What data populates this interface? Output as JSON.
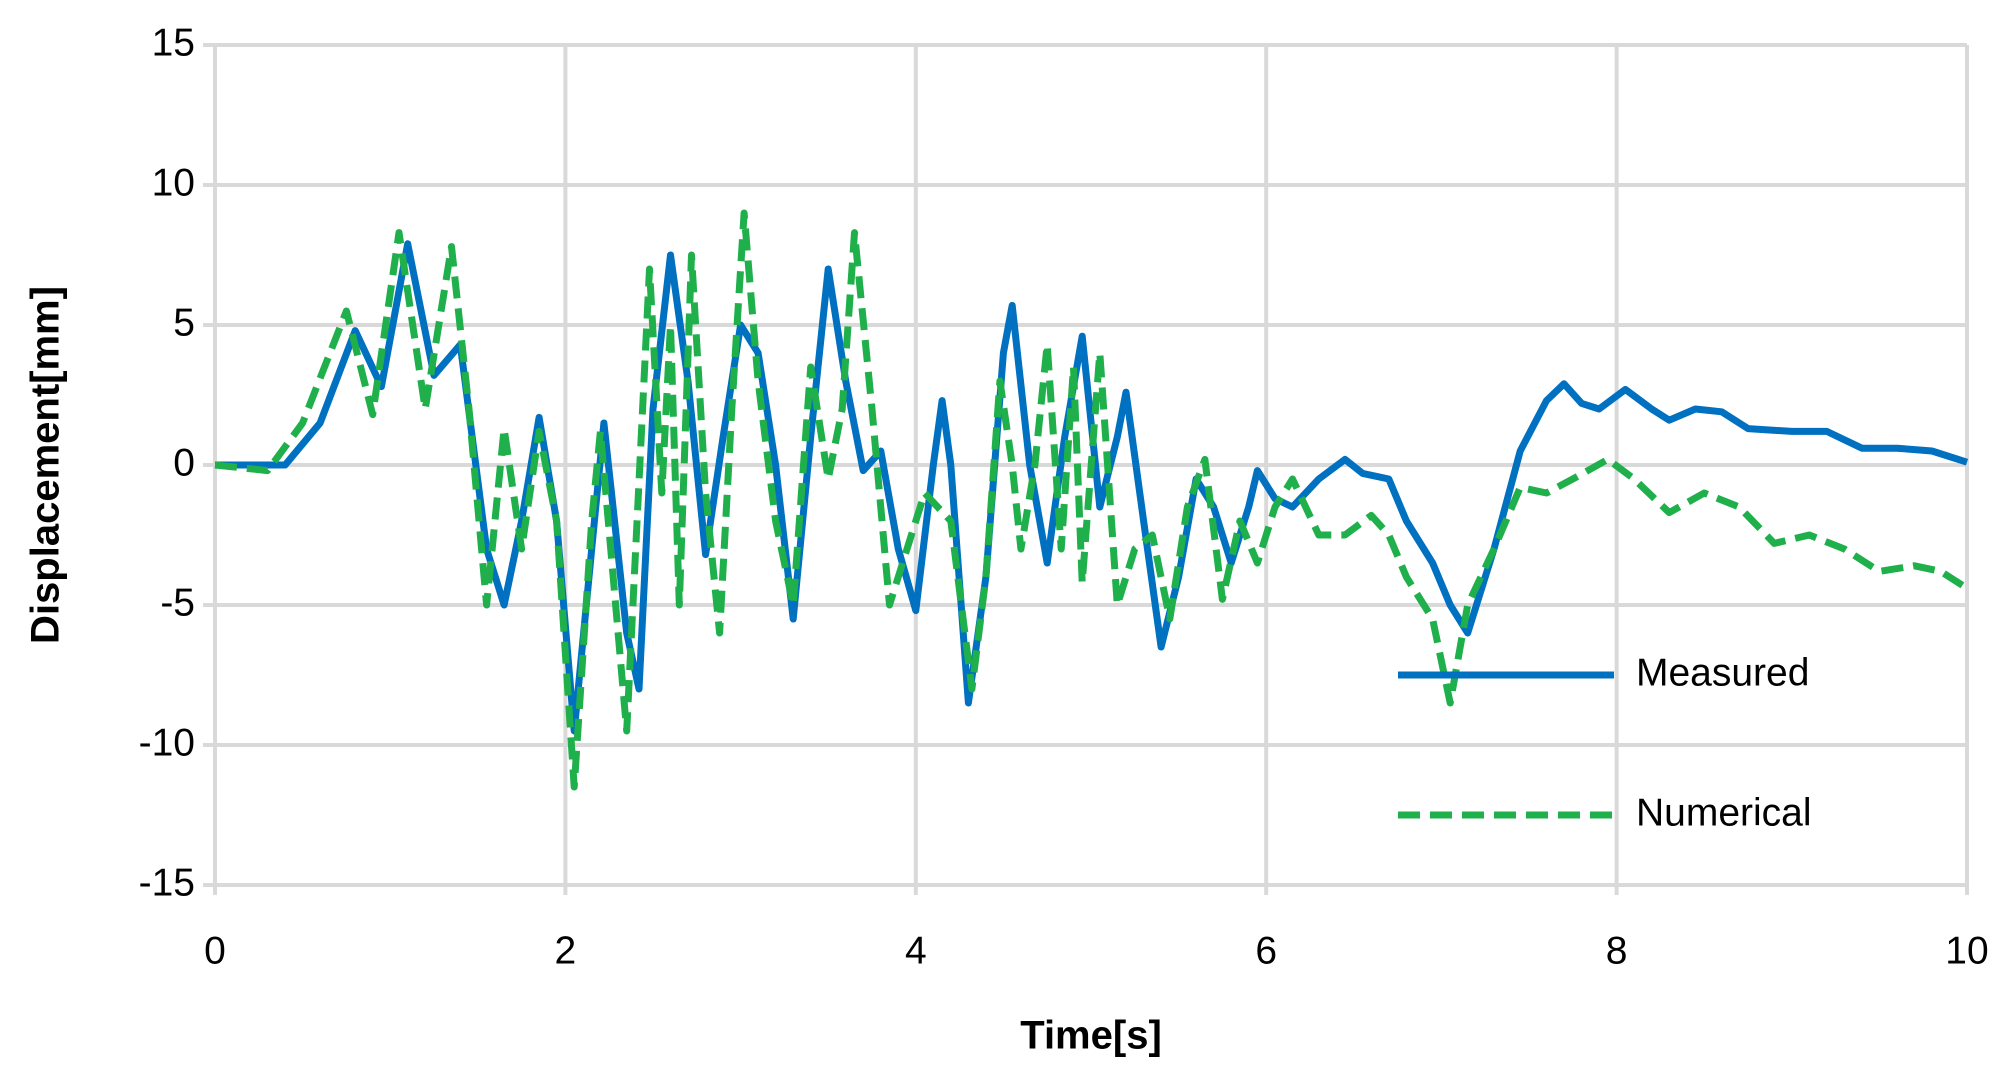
{
  "chart_data": {
    "type": "line",
    "xlabel": "Time[s]",
    "ylabel": "Displacement[mm]",
    "xlim": [
      0,
      10
    ],
    "xticks": [
      0,
      2,
      4,
      6,
      8,
      10
    ],
    "ylim": [
      -15,
      15
    ],
    "yticks": [
      -15,
      -10,
      -5,
      0,
      5,
      10,
      15
    ],
    "grid": true,
    "series": [
      {
        "name": "Measured",
        "color": "#0070c0",
        "dash": false,
        "x": [
          0,
          0.4,
          0.6,
          0.8,
          0.95,
          1.1,
          1.25,
          1.4,
          1.55,
          1.65,
          1.75,
          1.85,
          1.95,
          2.05,
          2.15,
          2.22,
          2.35,
          2.42,
          2.5,
          2.6,
          2.7,
          2.8,
          2.9,
          3.0,
          3.1,
          3.2,
          3.3,
          3.4,
          3.5,
          3.6,
          3.7,
          3.8,
          3.9,
          4.0,
          4.1,
          4.15,
          4.2,
          4.3,
          4.4,
          4.5,
          4.55,
          4.65,
          4.75,
          4.85,
          4.95,
          5.05,
          5.15,
          5.2,
          5.3,
          5.4,
          5.5,
          5.6,
          5.7,
          5.8,
          5.9,
          5.95,
          6.05,
          6.15,
          6.3,
          6.45,
          6.55,
          6.7,
          6.8,
          6.95,
          7.05,
          7.15,
          7.3,
          7.45,
          7.6,
          7.7,
          7.8,
          7.9,
          8.05,
          8.2,
          8.3,
          8.45,
          8.6,
          8.75,
          9.0,
          9.2,
          9.4,
          9.6,
          9.8,
          10
        ],
        "values": [
          0,
          0,
          1.5,
          4.8,
          2.8,
          7.9,
          3.2,
          4.3,
          -3,
          -5,
          -2,
          1.7,
          -2,
          -9.5,
          -3,
          1.5,
          -6,
          -8,
          2,
          7.5,
          3,
          -3.2,
          1,
          5,
          4,
          0,
          -5.5,
          1,
          7,
          3,
          -0.2,
          0.5,
          -3,
          -5.2,
          0,
          2.3,
          0,
          -8.5,
          -4,
          4,
          5.7,
          0,
          -3.5,
          1,
          4.6,
          -1.5,
          1,
          2.6,
          -2,
          -6.5,
          -4,
          -0.5,
          -1.5,
          -3.5,
          -1.5,
          -0.2,
          -1.2,
          -1.5,
          -0.5,
          0.2,
          -0.3,
          -0.5,
          -2,
          -3.5,
          -5,
          -6,
          -3,
          0.5,
          2.3,
          2.9,
          2.2,
          2,
          2.7,
          2,
          1.6,
          2,
          1.9,
          1.3,
          1.2,
          1.2,
          0.6,
          0.6,
          0.5,
          0.1
        ]
      },
      {
        "name": "Numerical",
        "color": "#1fb04b",
        "dash": true,
        "x": [
          0,
          0.3,
          0.5,
          0.75,
          0.9,
          1.05,
          1.2,
          1.35,
          1.45,
          1.55,
          1.65,
          1.75,
          1.85,
          1.95,
          2.05,
          2.15,
          2.2,
          2.35,
          2.48,
          2.55,
          2.6,
          2.65,
          2.72,
          2.8,
          2.88,
          2.95,
          3.02,
          3.1,
          3.2,
          3.3,
          3.4,
          3.5,
          3.58,
          3.65,
          3.75,
          3.85,
          3.95,
          4.05,
          4.2,
          4.32,
          4.4,
          4.48,
          4.55,
          4.6,
          4.68,
          4.75,
          4.83,
          4.9,
          4.95,
          5.05,
          5.15,
          5.25,
          5.35,
          5.45,
          5.55,
          5.65,
          5.75,
          5.85,
          5.95,
          6.05,
          6.15,
          6.3,
          6.45,
          6.6,
          6.7,
          6.8,
          6.95,
          7.05,
          7.15,
          7.3,
          7.45,
          7.6,
          7.75,
          7.95,
          8.1,
          8.3,
          8.5,
          8.7,
          8.9,
          9.1,
          9.3,
          9.5,
          9.7,
          9.85,
          10
        ],
        "values": [
          0,
          -0.2,
          1.5,
          5.5,
          1.8,
          8.3,
          2,
          7.8,
          2,
          -5,
          1.3,
          -3,
          1.2,
          -2,
          -11.5,
          -2,
          1.2,
          -9.5,
          7,
          -1,
          5,
          -5,
          7.5,
          -1,
          -6,
          2,
          9,
          3,
          -2,
          -5,
          3.5,
          -0.5,
          2,
          8.3,
          2,
          -5,
          -3,
          -1,
          -2,
          -8,
          -4,
          3,
          0,
          -3,
          0,
          4.3,
          -3,
          3.5,
          -4.2,
          4,
          -5,
          -3,
          -2.5,
          -5.5,
          -1.5,
          0.2,
          -4.8,
          -2,
          -3.5,
          -1.5,
          -0.5,
          -2.5,
          -2.5,
          -1.8,
          -2.5,
          -4,
          -5.5,
          -8.5,
          -5,
          -3,
          -0.8,
          -1,
          -0.5,
          0.2,
          -0.5,
          -1.7,
          -1,
          -1.5,
          -2.8,
          -2.5,
          -3,
          -3.8,
          -3.6,
          -3.8,
          -4.4
        ]
      }
    ]
  }
}
